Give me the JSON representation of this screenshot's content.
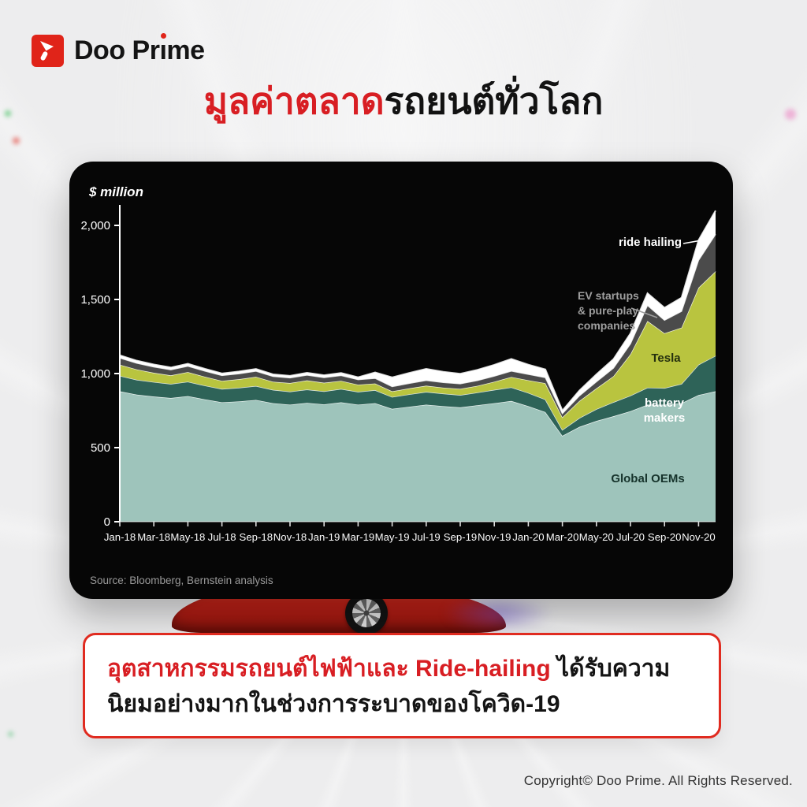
{
  "brand": {
    "logo_text": "Doo Prime"
  },
  "title": {
    "red_part": "มูลค่าตลาด",
    "black_part": "รถยนต์ทั่วโลก"
  },
  "panel": {
    "unit_label": "$ million",
    "source": "Source: Bloomberg, Bernstein analysis"
  },
  "chart_data": {
    "type": "area",
    "stacked": true,
    "title": "มูลค่าตลาดรถยนต์ทั่วโลก (Global auto market capitalisation)",
    "ylabel": "$ million",
    "xlabel": "",
    "ylim": [
      0,
      2100
    ],
    "grid": false,
    "legend_position": "labels-on-chart",
    "y_ticks": [
      "0",
      "500",
      "1,000",
      "1,500",
      "2,000"
    ],
    "y_tick_values": [
      0,
      500,
      1000,
      1500,
      2000
    ],
    "x": [
      "Jan-18",
      "Feb-18",
      "Mar-18",
      "Apr-18",
      "May-18",
      "Jun-18",
      "Jul-18",
      "Aug-18",
      "Sep-18",
      "Oct-18",
      "Nov-18",
      "Dec-18",
      "Jan-19",
      "Feb-19",
      "Mar-19",
      "Apr-19",
      "May-19",
      "Jun-19",
      "Jul-19",
      "Aug-19",
      "Sep-19",
      "Oct-19",
      "Nov-19",
      "Dec-19",
      "Jan-20",
      "Feb-20",
      "Mar-20",
      "Apr-20",
      "May-20",
      "Jun-20",
      "Jul-20",
      "Aug-20",
      "Sep-20",
      "Oct-20",
      "Nov-20",
      "Dec-20"
    ],
    "x_tick_labels": [
      "Jan-18",
      "Mar-18",
      "May-18",
      "Jul-18",
      "Sep-18",
      "Nov-18",
      "Jan-19",
      "Mar-19",
      "May-19",
      "Jul-19",
      "Sep-19",
      "Nov-19",
      "Jan-20",
      "Mar-20",
      "May-20",
      "Jul-20",
      "Sep-20",
      "Nov-20"
    ],
    "series": [
      {
        "name": "Global OEMs",
        "color": "#9ec4bb",
        "values": [
          880,
          858,
          845,
          835,
          848,
          826,
          806,
          812,
          822,
          800,
          790,
          802,
          792,
          806,
          790,
          800,
          762,
          776,
          790,
          780,
          772,
          786,
          800,
          815,
          780,
          740,
          580,
          640,
          680,
          712,
          746,
          790,
          790,
          800,
          855,
          880
        ]
      },
      {
        "name": "battery makers",
        "color": "#2e6358",
        "values": [
          105,
          100,
          98,
          95,
          97,
          93,
          90,
          92,
          94,
          90,
          88,
          90,
          88,
          90,
          87,
          88,
          80,
          84,
          86,
          85,
          83,
          86,
          90,
          92,
          90,
          85,
          40,
          60,
          80,
          95,
          105,
          115,
          112,
          130,
          205,
          240
        ]
      },
      {
        "name": "Tesla",
        "color": "#b9c43f",
        "values": [
          75,
          70,
          62,
          58,
          65,
          60,
          55,
          58,
          62,
          55,
          58,
          62,
          58,
          55,
          48,
          45,
          38,
          40,
          42,
          40,
          42,
          45,
          55,
          70,
          85,
          110,
          85,
          115,
          140,
          175,
          280,
          450,
          370,
          380,
          520,
          570
        ]
      },
      {
        "name": "EV startups & pure-play companies",
        "color": "#4b4b4b",
        "values": [
          45,
          42,
          40,
          38,
          40,
          38,
          36,
          37,
          38,
          36,
          35,
          36,
          35,
          36,
          34,
          35,
          32,
          34,
          36,
          35,
          34,
          36,
          38,
          40,
          40,
          38,
          25,
          35,
          45,
          55,
          70,
          105,
          88,
          110,
          185,
          250
        ]
      },
      {
        "name": "ride hailing",
        "color": "#ffffff",
        "values": [
          18,
          17,
          16,
          15,
          16,
          15,
          14,
          15,
          15,
          14,
          14,
          15,
          16,
          17,
          16,
          40,
          62,
          70,
          78,
          72,
          68,
          72,
          76,
          82,
          65,
          55,
          20,
          35,
          50,
          60,
          70,
          82,
          84,
          92,
          135,
          160
        ]
      }
    ],
    "annotations": {
      "ride_hailing": "ride hailing",
      "ev_startups_lines": [
        "EV startups",
        "& pure-play",
        "companies"
      ],
      "tesla": "Tesla",
      "battery_lines": [
        "battery",
        "makers"
      ],
      "global_oems": "Global OEMs"
    }
  },
  "callout": {
    "red_text": "อุตสาหกรรมรถยนต์ไฟฟ้าและ Ride-hailing ",
    "black_text": "ได้รับความนิยมอย่างมากในช่วงการระบาดของโควิด-19"
  },
  "footer": {
    "copyright": "Copyright© Doo Prime. All Rights Reserved."
  }
}
